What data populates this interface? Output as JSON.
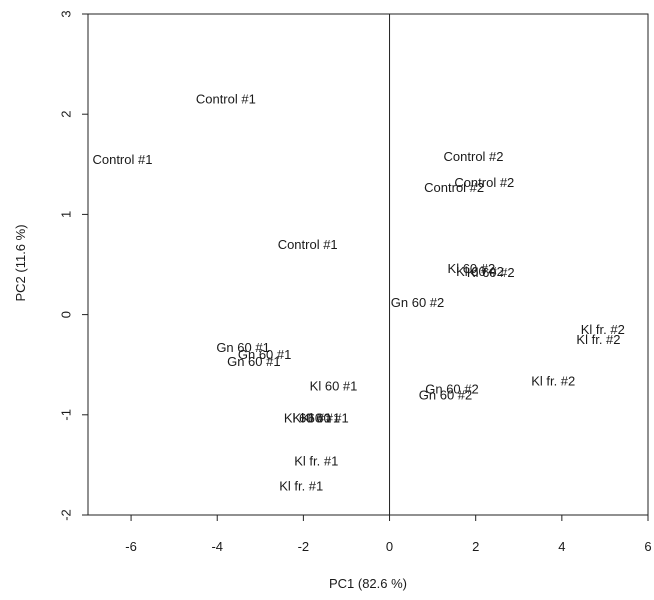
{
  "chart_data": {
    "type": "scatter",
    "xlabel": "PC1 (82.6 %)",
    "ylabel": "PC2 (11.6 %)",
    "xlim": [
      -7,
      6
    ],
    "ylim": [
      -2,
      3
    ],
    "xticks": [
      -6,
      -4,
      -2,
      0,
      2,
      4,
      6
    ],
    "yticks": [
      -2,
      -1,
      0,
      1,
      2,
      3
    ],
    "reference_lines": {
      "vertical_at_x": 0
    },
    "grid": false,
    "points": [
      {
        "label": "Control #1",
        "x": -3.8,
        "y": 2.15
      },
      {
        "label": "Control #1",
        "x": -6.2,
        "y": 1.55
      },
      {
        "label": "Control #1",
        "x": -1.9,
        "y": 0.7
      },
      {
        "label": "Control #2",
        "x": 1.95,
        "y": 1.58
      },
      {
        "label": "Control #2",
        "x": 2.2,
        "y": 1.32
      },
      {
        "label": "Control #2",
        "x": 1.5,
        "y": 1.27
      },
      {
        "label": "Kl 60 #2",
        "x": 1.9,
        "y": 0.46
      },
      {
        "label": "Kl 60 #2",
        "x": 2.1,
        "y": 0.43
      },
      {
        "label": "Kl 60 #2",
        "x": 2.35,
        "y": 0.42
      },
      {
        "label": "Gn 60 #2",
        "x": 0.65,
        "y": 0.12
      },
      {
        "label": "Kl fr. #2",
        "x": 4.95,
        "y": -0.15
      },
      {
        "label": "Kl fr. #2",
        "x": 4.85,
        "y": -0.25
      },
      {
        "label": "Kl fr. #2",
        "x": 3.8,
        "y": -0.66
      },
      {
        "label": "Gn 60 #1",
        "x": -3.4,
        "y": -0.33
      },
      {
        "label": "Gn 60 #1",
        "x": -2.9,
        "y": -0.4
      },
      {
        "label": "Gn 60 #1",
        "x": -3.15,
        "y": -0.47
      },
      {
        "label": "Kl 60 #1",
        "x": -1.3,
        "y": -0.71
      },
      {
        "label": "Gn 60 #2",
        "x": 1.45,
        "y": -0.74
      },
      {
        "label": "Gn 60 #2",
        "x": 1.3,
        "y": -0.8
      },
      {
        "label": "Kl 60 #1",
        "x": -1.9,
        "y": -1.03
      },
      {
        "label": "Kl 60 #1",
        "x": -1.7,
        "y": -1.03
      },
      {
        "label": "Kl 60 #1",
        "x": -1.5,
        "y": -1.03
      },
      {
        "label": "Kl fr. #1",
        "x": -1.7,
        "y": -1.46
      },
      {
        "label": "Kl fr. #1",
        "x": -2.05,
        "y": -1.71
      }
    ]
  }
}
